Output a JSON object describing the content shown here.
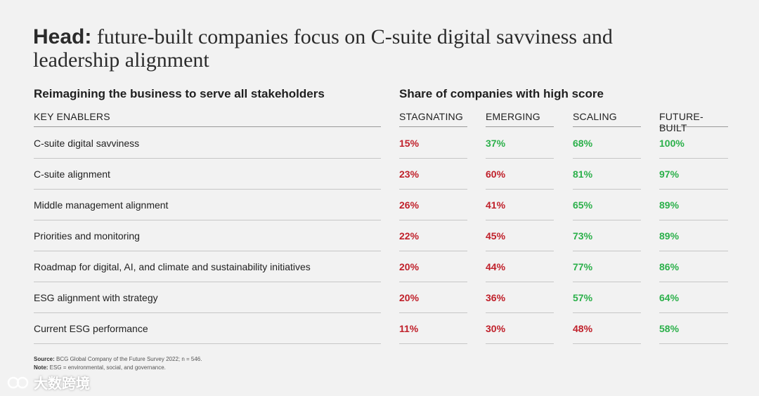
{
  "title": {
    "head": "Head:",
    "text": " future-built companies focus on C-suite digital savviness and leadership alignment"
  },
  "left_subhead": "Reimagining the business to serve all stakeholders",
  "right_subhead": "Share of companies with high score",
  "colors": {
    "low": "#c0202a",
    "high": "#2bb04a"
  },
  "chart_data": {
    "type": "table",
    "title": "Share of companies with high score",
    "row_header": "KEY ENABLERS",
    "columns": [
      "STAGNATING",
      "EMERGING",
      "SCALING",
      "FUTURE-BUILT"
    ],
    "rows": [
      {
        "enabler": "C-suite digital savviness",
        "values": [
          "15%",
          "37%",
          "68%",
          "100%"
        ],
        "status": [
          "low",
          "high",
          "high",
          "high"
        ]
      },
      {
        "enabler": "C-suite alignment",
        "values": [
          "23%",
          "60%",
          "81%",
          "97%"
        ],
        "status": [
          "low",
          "low",
          "high",
          "high"
        ]
      },
      {
        "enabler": "Middle management alignment",
        "values": [
          "26%",
          "41%",
          "65%",
          "89%"
        ],
        "status": [
          "low",
          "low",
          "high",
          "high"
        ]
      },
      {
        "enabler": "Priorities and monitoring",
        "values": [
          "22%",
          "45%",
          "73%",
          "89%"
        ],
        "status": [
          "low",
          "low",
          "high",
          "high"
        ]
      },
      {
        "enabler": "Roadmap for digital, AI, and climate and sustainability initiatives",
        "values": [
          "20%",
          "44%",
          "77%",
          "86%"
        ],
        "status": [
          "low",
          "low",
          "high",
          "high"
        ]
      },
      {
        "enabler": "ESG alignment with strategy",
        "values": [
          "20%",
          "36%",
          "57%",
          "64%"
        ],
        "status": [
          "low",
          "low",
          "high",
          "high"
        ]
      },
      {
        "enabler": "Current ESG performance",
        "values": [
          "11%",
          "30%",
          "48%",
          "58%"
        ],
        "status": [
          "low",
          "low",
          "low",
          "high"
        ]
      }
    ]
  },
  "footnotes": {
    "source_label": "Source:",
    "source_text": " BCG Global Company of the Future Survey 2022; n = 546.",
    "note_label": "Note:",
    "note_text": " ESG = environmental, social, and governance."
  },
  "watermark": "大数跨境"
}
